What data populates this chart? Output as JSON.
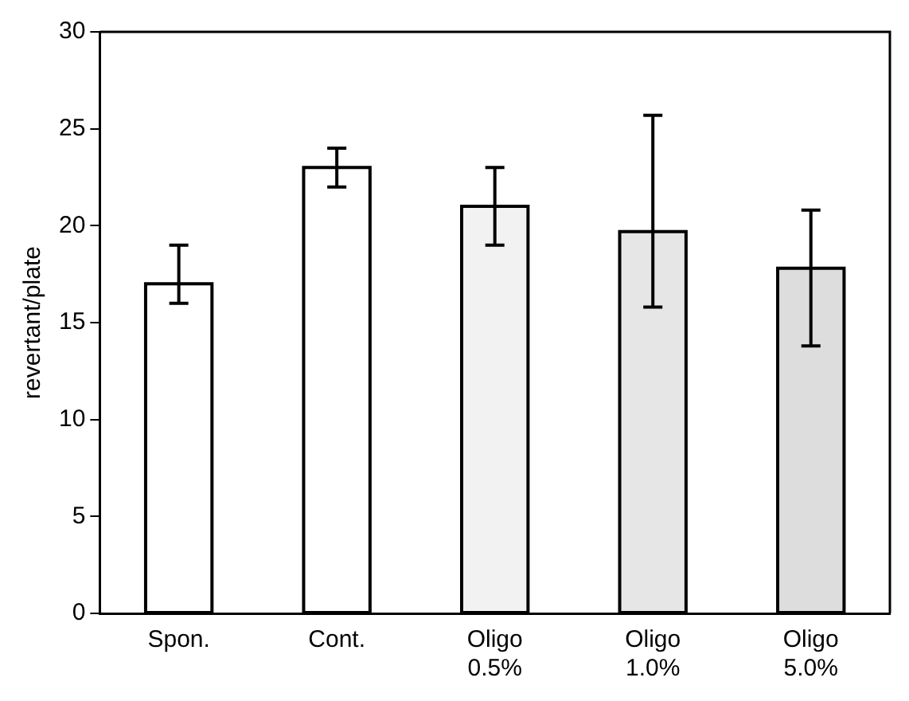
{
  "chart_data": {
    "type": "bar",
    "ylabel": "revertant/plate",
    "categories": [
      "Spon.",
      "Cont.",
      "Oligo\n0.5%",
      "Oligo\n1.0%",
      "Oligo\n5.0%"
    ],
    "values": [
      17,
      23,
      21,
      19.7,
      17.8
    ],
    "colors": [
      "#ffffff",
      "#ffffff",
      "#f2f2f2",
      "#e6e6e6",
      "#dddddd"
    ],
    "errors": [
      [
        16,
        19
      ],
      [
        22,
        24
      ],
      [
        19,
        23
      ],
      [
        15.8,
        25.7
      ],
      [
        13.8,
        20.8
      ]
    ],
    "ylim": [
      0,
      30
    ],
    "yticks": [
      0,
      5,
      10,
      15,
      20,
      25,
      30
    ],
    "grid": false,
    "legend": false
  }
}
